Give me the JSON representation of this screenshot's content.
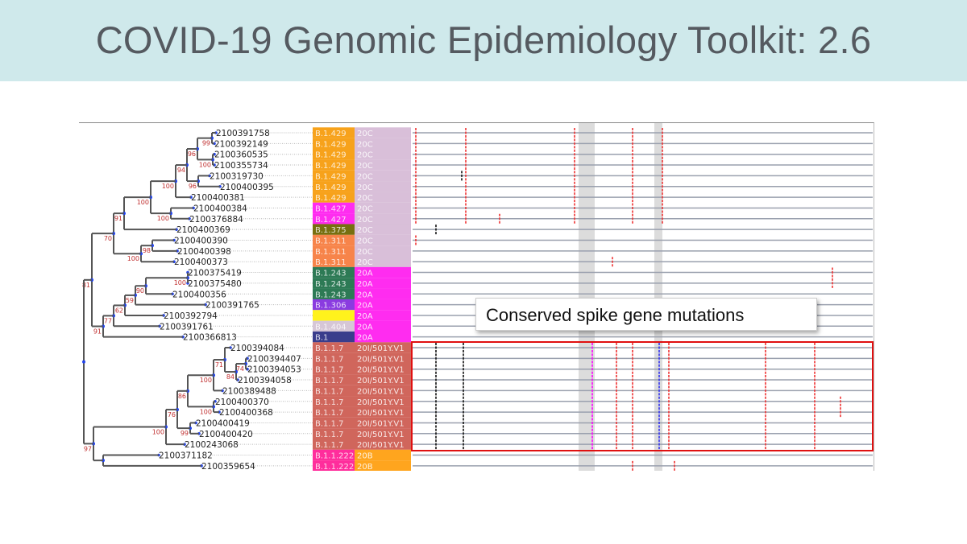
{
  "slide": {
    "title": "COVID-19 Genomic Epidemiology Toolkit: 2.6",
    "callout": "Conserved spike gene mutations"
  },
  "lineage_colors": {
    "B.1.429": "#f7a21b",
    "B.1.427": "#ff2cf0",
    "B.1.375": "#776f10",
    "B.1.311": "#f7844a",
    "B.1.243": "#2d7a55",
    "B.1.306": "#8a3be0",
    "": "#fff21c",
    "B.1.404": "#d6c6d6",
    "B.1": "#3a3d8c",
    "B.1.1.7": "#d0665c",
    "B.1.1.222": "#ff2d9c"
  },
  "clade_colors": {
    "20C": "#d9bfd9",
    "20A": "#ff2cf0",
    "20I/501Y.V1": "#d0665c",
    "20B": "#ffa51e"
  },
  "rows": [
    {
      "id": "2100391758",
      "lineage": "B.1.429",
      "clade": "20C"
    },
    {
      "id": "2100392149",
      "lineage": "B.1.429",
      "clade": "20C"
    },
    {
      "id": "2100360535",
      "lineage": "B.1.429",
      "clade": "20C"
    },
    {
      "id": "2100355734",
      "lineage": "B.1.429",
      "clade": "20C"
    },
    {
      "id": "2100319730",
      "lineage": "B.1.429",
      "clade": "20C"
    },
    {
      "id": "2100400395",
      "lineage": "B.1.429",
      "clade": "20C"
    },
    {
      "id": "2100400381",
      "lineage": "B.1.429",
      "clade": "20C"
    },
    {
      "id": "2100400384",
      "lineage": "B.1.427",
      "clade": "20C"
    },
    {
      "id": "2100376884",
      "lineage": "B.1.427",
      "clade": "20C"
    },
    {
      "id": "2100400369",
      "lineage": "B.1.375",
      "clade": "20C"
    },
    {
      "id": "2100400390",
      "lineage": "B.1.311",
      "clade": "20C"
    },
    {
      "id": "2100400398",
      "lineage": "B.1.311",
      "clade": "20C"
    },
    {
      "id": "2100400373",
      "lineage": "B.1.311",
      "clade": "20C"
    },
    {
      "id": "2100375419",
      "lineage": "B.1.243",
      "clade": "20A"
    },
    {
      "id": "2100375480",
      "lineage": "B.1.243",
      "clade": "20A"
    },
    {
      "id": "2100400356",
      "lineage": "B.1.243",
      "clade": "20A"
    },
    {
      "id": "2100391765",
      "lineage": "B.1.306",
      "clade": "20A"
    },
    {
      "id": "2100392794",
      "lineage": "",
      "clade": "20A"
    },
    {
      "id": "2100391761",
      "lineage": "B.1.404",
      "clade": "20A"
    },
    {
      "id": "2100366813",
      "lineage": "B.1",
      "clade": "20A"
    },
    {
      "id": "2100394084",
      "lineage": "B.1.1.7",
      "clade": "20I/501Y.V1"
    },
    {
      "id": "2100394407",
      "lineage": "B.1.1.7",
      "clade": "20I/501Y.V1"
    },
    {
      "id": "2100394053",
      "lineage": "B.1.1.7",
      "clade": "20I/501Y.V1"
    },
    {
      "id": "2100394058",
      "lineage": "B.1.1.7",
      "clade": "20I/501Y.V1"
    },
    {
      "id": "2100389488",
      "lineage": "B.1.1.7",
      "clade": "20I/501Y.V1"
    },
    {
      "id": "2100400370",
      "lineage": "B.1.1.7",
      "clade": "20I/501Y.V1"
    },
    {
      "id": "2100400368",
      "lineage": "B.1.1.7",
      "clade": "20I/501Y.V1"
    },
    {
      "id": "2100400419",
      "lineage": "B.1.1.7",
      "clade": "20I/501Y.V1"
    },
    {
      "id": "2100400420",
      "lineage": "B.1.1.7",
      "clade": "20I/501Y.V1"
    },
    {
      "id": "2100243068",
      "lineage": "B.1.1.7",
      "clade": "20I/501Y.V1"
    },
    {
      "id": "2100371182",
      "lineage": "B.1.1.222",
      "clade": "20B"
    },
    {
      "id": "2100359654",
      "lineage": "B.1.1.222",
      "clade": "20B"
    }
  ],
  "bootstraps": {
    "n99": "99",
    "n100a": "100",
    "n96a": "96",
    "n96b": "96",
    "n94": "94",
    "n100b": "100",
    "n100c": "100",
    "n100d": "100",
    "n91": "91",
    "n98": "98",
    "n100e": "100",
    "n70": "70",
    "n100f": "100",
    "n90": "90",
    "n59": "59",
    "n62": "62",
    "n77": "77",
    "n91b": "91",
    "n81": "81",
    "n74": "74",
    "n84": "84",
    "n71": "71",
    "n100g": "100",
    "n100h": "100",
    "n86": "86",
    "n99b": "99",
    "n76": "76",
    "n100i": "100",
    "n97": "97"
  }
}
